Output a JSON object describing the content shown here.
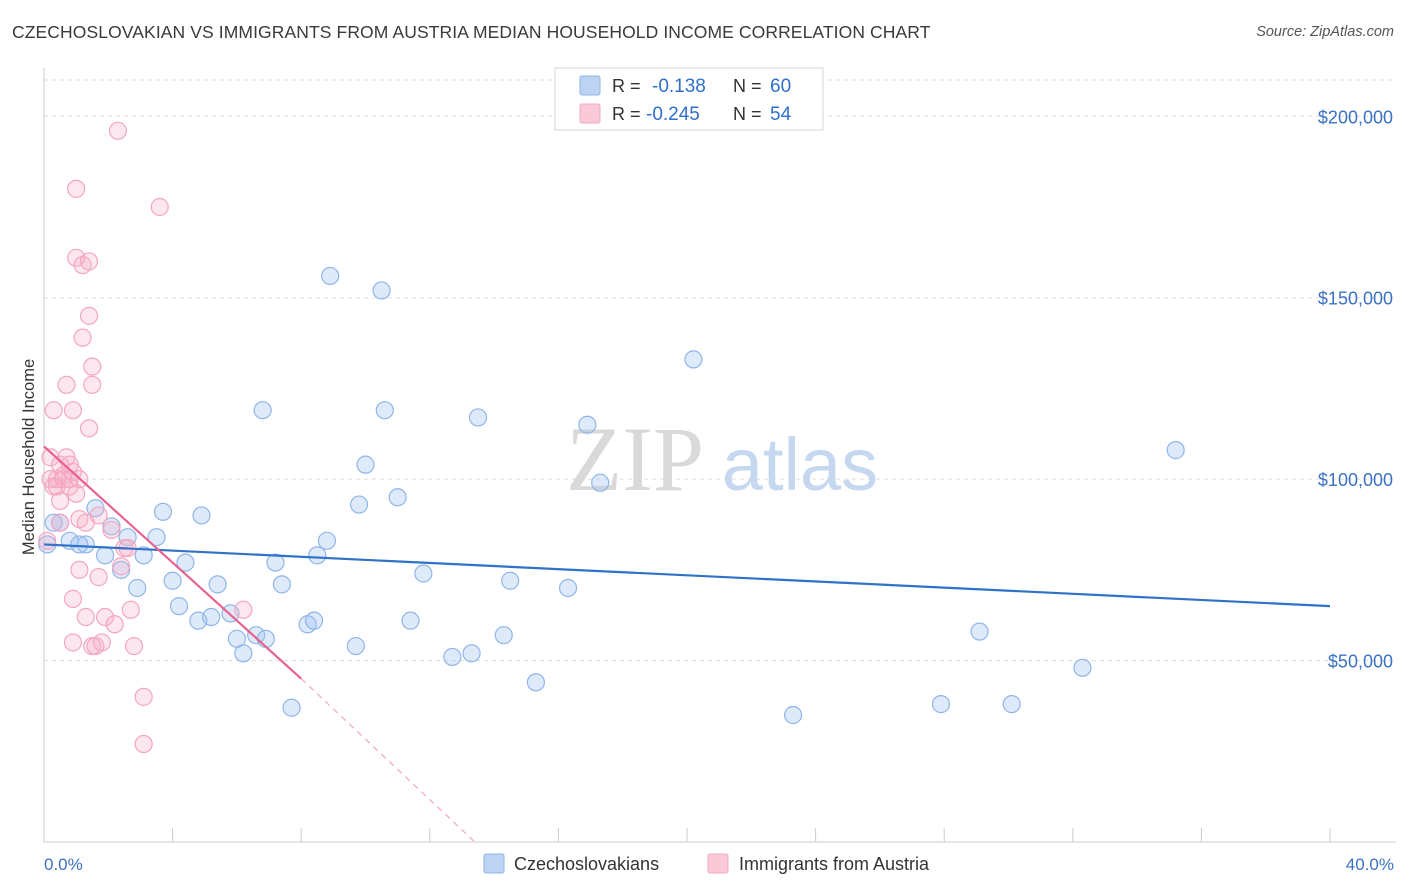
{
  "chart_data": {
    "type": "scatter",
    "title": "CZECHOSLOVAKIAN VS IMMIGRANTS FROM AUSTRIA MEDIAN HOUSEHOLD INCOME CORRELATION CHART",
    "source": "Source: ZipAtlas.com",
    "xlabel": "",
    "ylabel": "Median Household Income",
    "xlim": [
      0,
      40
    ],
    "ylim": [
      0,
      210000
    ],
    "x_tick_labels": [
      "0.0%",
      "40.0%"
    ],
    "y_ticks": [
      50000,
      100000,
      150000,
      200000
    ],
    "y_tick_labels": [
      "$50,000",
      "$100,000",
      "$150,000",
      "$200,000"
    ],
    "watermark": {
      "bold": "ZIP",
      "light": "atlas"
    },
    "legend_stats": [
      {
        "r_label": "R =",
        "r_value": "-0.138",
        "n_label": "N =",
        "n_value": "60"
      },
      {
        "r_label": "R =",
        "r_value": "-0.245",
        "n_label": "N =",
        "n_value": "54"
      }
    ],
    "series": [
      {
        "name": "Czechoslovakians",
        "color": "#8fb5ea",
        "line_color": "#2f72c8",
        "trend": {
          "x0": 0,
          "y0": 82000,
          "x1": 40,
          "y1": 65000
        },
        "points": [
          [
            0.1,
            82000
          ],
          [
            0.3,
            88000
          ],
          [
            0.5,
            88000
          ],
          [
            0.8,
            83000
          ],
          [
            1.3,
            82000
          ],
          [
            1.6,
            92000
          ],
          [
            1.9,
            79000
          ],
          [
            2.1,
            87000
          ],
          [
            2.4,
            75000
          ],
          [
            2.6,
            84000
          ],
          [
            2.9,
            70000
          ],
          [
            3.1,
            79000
          ],
          [
            3.5,
            84000
          ],
          [
            3.7,
            91000
          ],
          [
            4.0,
            72000
          ],
          [
            4.2,
            65000
          ],
          [
            4.4,
            77000
          ],
          [
            4.8,
            61000
          ],
          [
            4.9,
            90000
          ],
          [
            5.2,
            62000
          ],
          [
            5.4,
            71000
          ],
          [
            5.8,
            63000
          ],
          [
            6.0,
            56000
          ],
          [
            6.2,
            52000
          ],
          [
            6.6,
            57000
          ],
          [
            6.8,
            119000
          ],
          [
            6.9,
            56000
          ],
          [
            7.2,
            77000
          ],
          [
            7.4,
            71000
          ],
          [
            7.7,
            37000
          ],
          [
            8.2,
            60000
          ],
          [
            8.4,
            61000
          ],
          [
            8.5,
            79000
          ],
          [
            8.8,
            83000
          ],
          [
            8.9,
            156000
          ],
          [
            9.7,
            54000
          ],
          [
            9.8,
            93000
          ],
          [
            10.0,
            104000
          ],
          [
            10.5,
            152000
          ],
          [
            10.6,
            119000
          ],
          [
            11.0,
            95000
          ],
          [
            11.4,
            61000
          ],
          [
            11.8,
            74000
          ],
          [
            12.7,
            51000
          ],
          [
            13.3,
            52000
          ],
          [
            13.5,
            117000
          ],
          [
            14.3,
            57000
          ],
          [
            14.5,
            72000
          ],
          [
            15.3,
            44000
          ],
          [
            16.3,
            70000
          ],
          [
            16.9,
            115000
          ],
          [
            17.3,
            99000
          ],
          [
            20.2,
            133000
          ],
          [
            23.3,
            35000
          ],
          [
            27.9,
            38000
          ],
          [
            29.1,
            58000
          ],
          [
            30.1,
            38000
          ],
          [
            32.3,
            48000
          ],
          [
            35.2,
            108000
          ],
          [
            1.1,
            82000
          ]
        ]
      },
      {
        "name": "Immigrants from Austria",
        "color": "#f4a6c0",
        "line_color": "#e8628f",
        "trend": {
          "x0": 0,
          "y0": 109000,
          "x1": 8,
          "y1": 45000
        },
        "trend_ext": {
          "x0": 8,
          "y0": 45000,
          "x1": 13.4,
          "y1": 0
        },
        "points": [
          [
            0.1,
            83000
          ],
          [
            0.2,
            106000
          ],
          [
            0.2,
            100000
          ],
          [
            0.3,
            98000
          ],
          [
            0.3,
            119000
          ],
          [
            0.4,
            98000
          ],
          [
            0.4,
            100000
          ],
          [
            0.5,
            88000
          ],
          [
            0.5,
            94000
          ],
          [
            0.5,
            104000
          ],
          [
            0.6,
            101000
          ],
          [
            0.6,
            100000
          ],
          [
            0.7,
            126000
          ],
          [
            0.7,
            106000
          ],
          [
            0.8,
            104000
          ],
          [
            0.8,
            98000
          ],
          [
            0.8,
            100000
          ],
          [
            0.9,
            102000
          ],
          [
            0.9,
            119000
          ],
          [
            0.9,
            67000
          ],
          [
            0.9,
            55000
          ],
          [
            1.0,
            96000
          ],
          [
            1.0,
            180000
          ],
          [
            1.0,
            161000
          ],
          [
            1.1,
            100000
          ],
          [
            1.1,
            89000
          ],
          [
            1.1,
            75000
          ],
          [
            1.2,
            159000
          ],
          [
            1.2,
            139000
          ],
          [
            1.3,
            62000
          ],
          [
            1.3,
            88000
          ],
          [
            1.4,
            160000
          ],
          [
            1.4,
            145000
          ],
          [
            1.4,
            114000
          ],
          [
            1.5,
            131000
          ],
          [
            1.5,
            126000
          ],
          [
            1.5,
            54000
          ],
          [
            1.6,
            54000
          ],
          [
            1.7,
            90000
          ],
          [
            1.7,
            73000
          ],
          [
            1.8,
            55000
          ],
          [
            1.9,
            62000
          ],
          [
            2.1,
            86000
          ],
          [
            2.2,
            60000
          ],
          [
            2.3,
            196000
          ],
          [
            2.4,
            76000
          ],
          [
            2.5,
            81000
          ],
          [
            2.6,
            81000
          ],
          [
            2.7,
            64000
          ],
          [
            2.8,
            54000
          ],
          [
            3.1,
            27000
          ],
          [
            3.1,
            40000
          ],
          [
            3.6,
            175000
          ],
          [
            6.2,
            64000
          ]
        ]
      }
    ]
  }
}
